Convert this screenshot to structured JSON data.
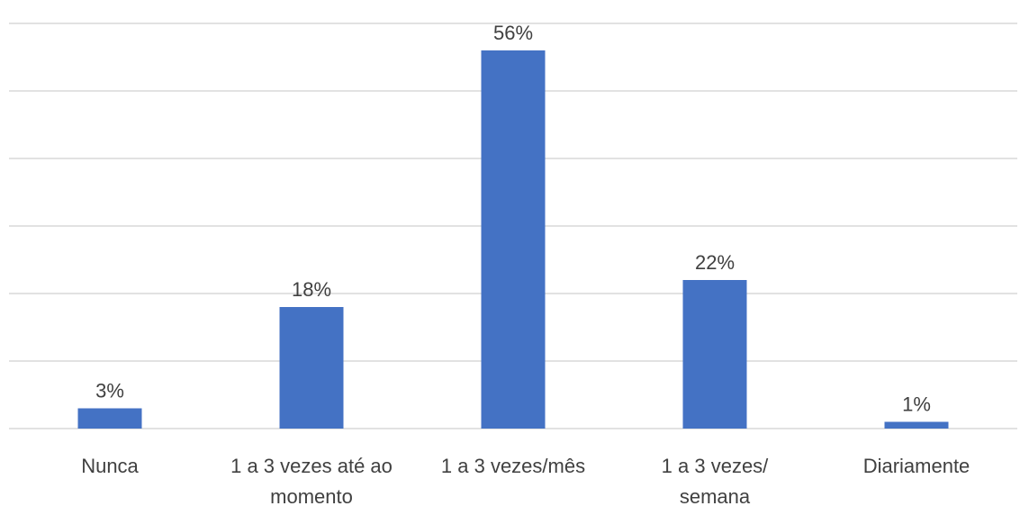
{
  "chart_data": {
    "type": "bar",
    "categories": [
      "Nunca",
      "1 a 3 vezes até ao momento",
      "1 a 3 vezes/mês",
      "1 a 3 vezes/ semana",
      "Diariamente"
    ],
    "category_lines": [
      [
        "Nunca"
      ],
      [
        "1 a 3 vezes até ao",
        "momento"
      ],
      [
        "1 a 3 vezes/mês"
      ],
      [
        "1 a 3 vezes/",
        "semana"
      ],
      [
        "Diariamente"
      ]
    ],
    "values": [
      3,
      18,
      56,
      22,
      1
    ],
    "data_labels": [
      "3%",
      "18%",
      "56%",
      "22%",
      "1%"
    ],
    "ylim": [
      0,
      60
    ],
    "gridlines": [
      0,
      10,
      20,
      30,
      40,
      50,
      60
    ],
    "grid": true,
    "bar_color": "#4472c4",
    "title": "",
    "xlabel": "",
    "ylabel": ""
  }
}
